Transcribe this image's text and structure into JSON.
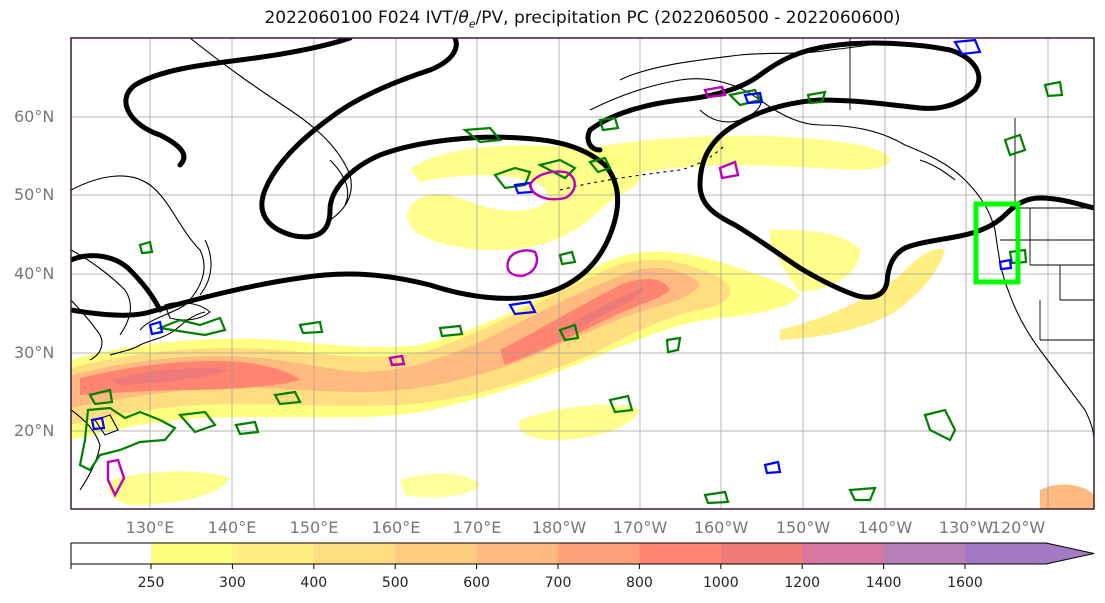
{
  "title": {
    "prefix": "2022060100 F024 IVT/",
    "theta": "θ",
    "theta_sub": "e",
    "suffix": "/PV, precipitation PC (2022060500 - 2022060600)"
  },
  "map": {
    "lat_labels": [
      "60°N",
      "50°N",
      "40°N",
      "30°N",
      "20°N"
    ],
    "lon_labels": [
      "130°E",
      "140°E",
      "150°E",
      "160°E",
      "170°E",
      "180°W",
      "170°W",
      "160°W",
      "150°W",
      "140°W",
      "130°W",
      "120°W"
    ],
    "colors": {
      "pv_contour": "#000000",
      "green_contour": "#008000",
      "blue_contour": "#0000ff",
      "magenta_contour": "#bb00bb",
      "highlight_box": "#00ff00"
    }
  },
  "colorbar": {
    "ticks": [
      "250",
      "300",
      "400",
      "500",
      "600",
      "700",
      "800",
      "1000",
      "1200",
      "1400",
      "1600"
    ],
    "colors": [
      "#ffff7f",
      "#ffee80",
      "#ffdd80",
      "#ffcc7f",
      "#ffbb7f",
      "#ffa07a",
      "#ff8570",
      "#ee7a7a",
      "#d878a0",
      "#b880b8",
      "#a47ac4"
    ]
  }
}
